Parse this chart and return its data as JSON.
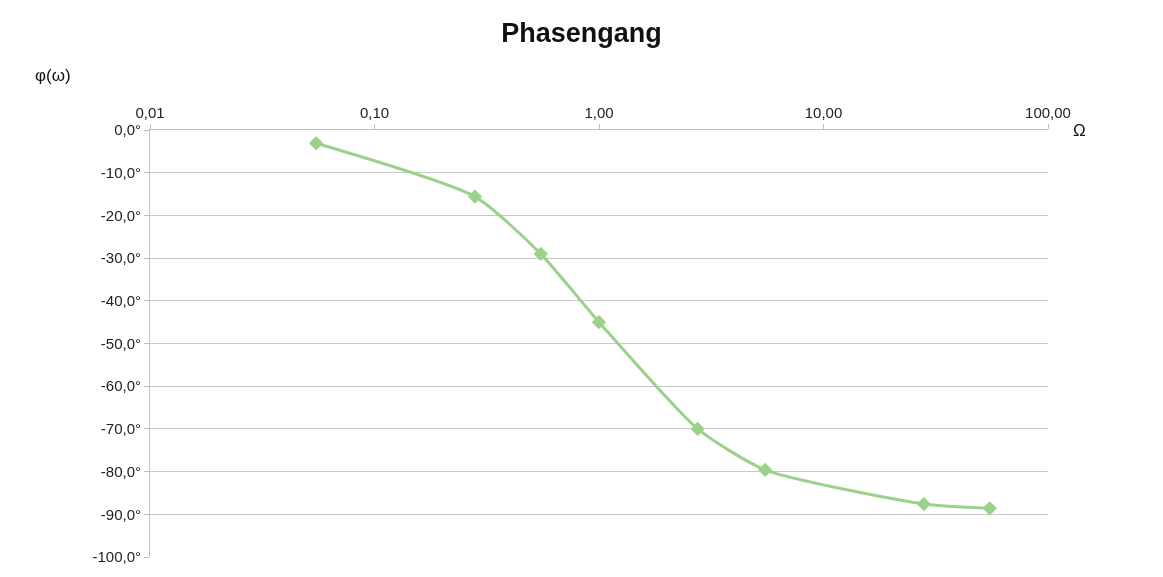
{
  "chart_data": {
    "type": "line",
    "title": "Phasengang",
    "xlabel": "Ω",
    "ylabel": "φ(ω)",
    "x": [
      0.055,
      0.28,
      0.55,
      1,
      2.75,
      5.5,
      28,
      55
    ],
    "series": [
      {
        "color": "#9cd18b",
        "values": [
          -3.1,
          -15.6,
          -29,
          -45,
          -70,
          -79.6,
          -87.6,
          -88.6
        ]
      }
    ],
    "log": "x",
    "xlim": [
      0.01,
      100
    ],
    "xticks": [
      {
        "value": 0.01,
        "label": "0,01"
      },
      {
        "value": 0.1,
        "label": "0,10"
      },
      {
        "value": 1,
        "label": "1,00"
      },
      {
        "value": 10,
        "label": "10,00"
      },
      {
        "value": 100,
        "label": "100,00"
      }
    ],
    "ylim": [
      -100,
      0
    ],
    "yticks": [
      {
        "value": 0,
        "label": "0,0°"
      },
      {
        "value": -10,
        "label": "-10,0°"
      },
      {
        "value": -20,
        "label": "-20,0°"
      },
      {
        "value": -30,
        "label": "-30,0°"
      },
      {
        "value": -40,
        "label": "-40,0°"
      },
      {
        "value": -50,
        "label": "-50,0°"
      },
      {
        "value": -60,
        "label": "-60,0°"
      },
      {
        "value": -70,
        "label": "-70,0°"
      },
      {
        "value": -80,
        "label": "-80,0°"
      },
      {
        "value": -90,
        "label": "-90,0°"
      },
      {
        "value": -100,
        "label": "-100,0°"
      }
    ],
    "grid": "y",
    "marker": "diamond",
    "line_style": "solid",
    "legend": false
  }
}
